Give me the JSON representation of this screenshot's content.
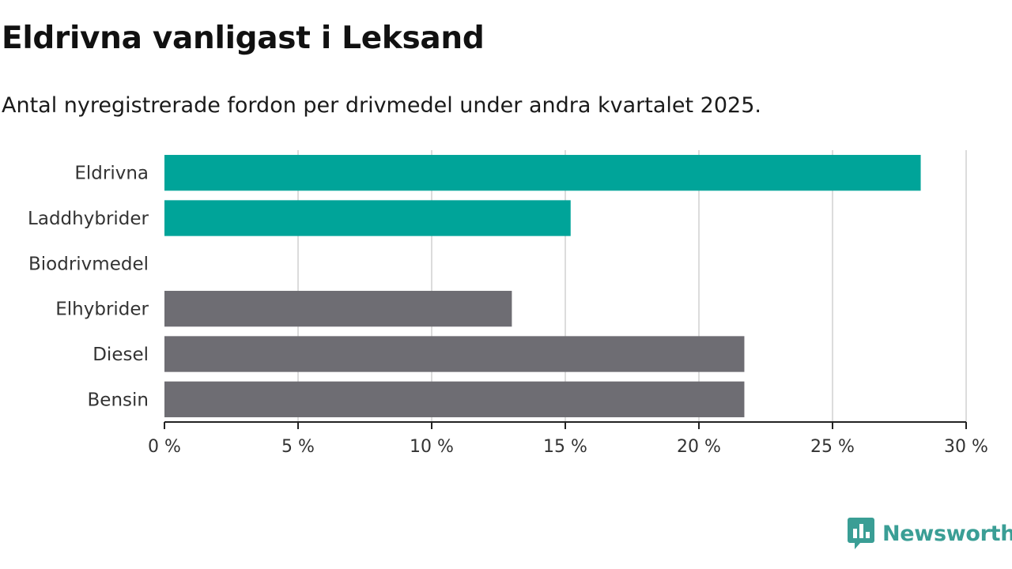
{
  "header": {
    "title": "Eldrivna vanligast i Leksand",
    "subtitle": "Antal nyregistrerade fordon per drivmedel under andra kvartalet 2025."
  },
  "chart_data": {
    "type": "bar",
    "orientation": "horizontal",
    "title": "Eldrivna vanligast i Leksand",
    "subtitle": "Antal nyregistrerade fordon per drivmedel under andra kvartalet 2025.",
    "categories": [
      "Eldrivna",
      "Laddhybrider",
      "Biodrivmedel",
      "Elhybrider",
      "Diesel",
      "Bensin"
    ],
    "values": [
      28.3,
      15.2,
      0,
      13.0,
      21.7,
      21.7
    ],
    "bar_colors": [
      "#00a499",
      "#00a499",
      "#00a499",
      "#6e6d73",
      "#6e6d73",
      "#6e6d73"
    ],
    "xlim": [
      0,
      30
    ],
    "xticks": [
      0,
      5,
      10,
      15,
      20,
      25,
      30
    ],
    "xtick_labels": [
      "0 %",
      "5 %",
      "10 %",
      "15 %",
      "20 %",
      "25 %",
      "30 %"
    ],
    "xlabel": "",
    "ylabel": "",
    "grid": true,
    "legend": "none"
  },
  "brand": {
    "name": "Newsworthy",
    "color": "#3a9e95"
  }
}
